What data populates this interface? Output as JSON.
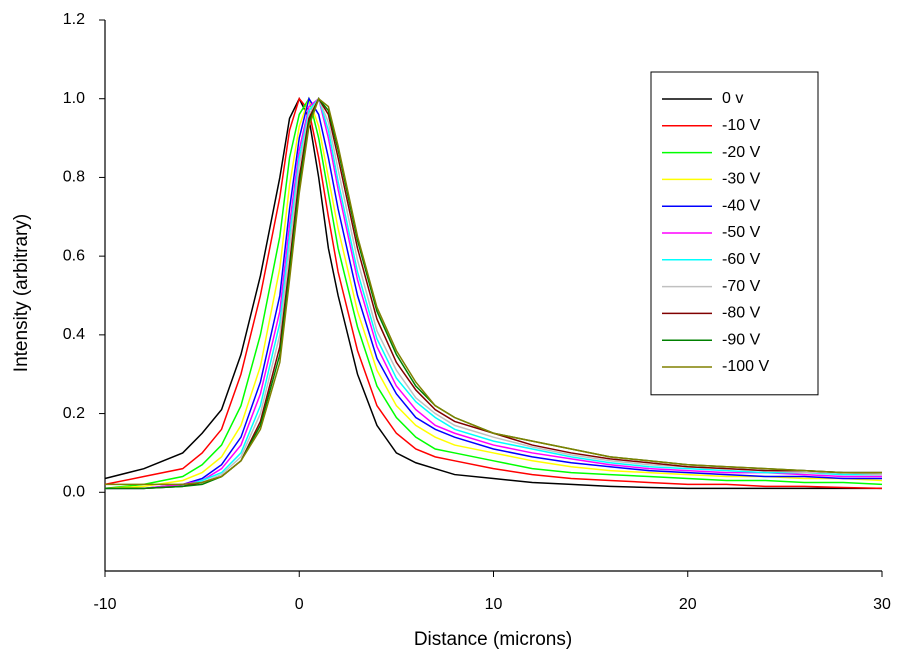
{
  "chart_data": {
    "type": "line",
    "xlabel": "Distance (microns)",
    "ylabel": "Intensity (arbitrary)",
    "x": [
      -10,
      -8,
      -6,
      -5,
      -4,
      -3,
      -2,
      -1,
      -0.5,
      0,
      0.5,
      1,
      1.5,
      2,
      3,
      4,
      5,
      6,
      7,
      8,
      10,
      12,
      14,
      16,
      18,
      20,
      22,
      24,
      26,
      28,
      30
    ],
    "xlim": [
      -10,
      30
    ],
    "xticks": [
      -10,
      0,
      10,
      20,
      30
    ],
    "ylim": [
      -0.2,
      1.2
    ],
    "yticks": [
      {
        "value": 0,
        "label": "0.0"
      },
      0.2,
      0.4,
      0.6,
      0.8,
      {
        "value": 1,
        "label": "1.0"
      },
      1.2
    ],
    "legend": "upper-right",
    "series": [
      {
        "name": "0 v",
        "color": "#000000",
        "values": [
          0.035,
          0.06,
          0.1,
          0.15,
          0.21,
          0.35,
          0.55,
          0.8,
          0.95,
          1.0,
          0.95,
          0.8,
          0.62,
          0.5,
          0.3,
          0.17,
          0.1,
          0.075,
          0.06,
          0.045,
          0.035,
          0.025,
          0.02,
          0.015,
          0.012,
          0.01,
          0.01,
          0.01,
          0.01,
          0.01,
          0.01
        ]
      },
      {
        "name": "-10 V",
        "color": "#ff0000",
        "values": [
          0.02,
          0.04,
          0.06,
          0.1,
          0.16,
          0.3,
          0.5,
          0.75,
          0.92,
          1.0,
          0.97,
          0.85,
          0.7,
          0.56,
          0.36,
          0.22,
          0.15,
          0.11,
          0.09,
          0.08,
          0.06,
          0.045,
          0.035,
          0.03,
          0.025,
          0.02,
          0.02,
          0.015,
          0.015,
          0.012,
          0.01
        ]
      },
      {
        "name": "-20 V",
        "color": "#00ff00",
        "values": [
          0.01,
          0.02,
          0.04,
          0.07,
          0.12,
          0.22,
          0.4,
          0.65,
          0.85,
          0.96,
          1.0,
          0.9,
          0.76,
          0.62,
          0.42,
          0.27,
          0.19,
          0.14,
          0.11,
          0.1,
          0.08,
          0.06,
          0.05,
          0.045,
          0.04,
          0.035,
          0.03,
          0.03,
          0.025,
          0.025,
          0.02
        ]
      },
      {
        "name": "-30 V",
        "color": "#ffff00",
        "values": [
          0.01,
          0.015,
          0.03,
          0.05,
          0.09,
          0.17,
          0.32,
          0.57,
          0.78,
          0.93,
          1.0,
          0.93,
          0.8,
          0.67,
          0.46,
          0.31,
          0.22,
          0.17,
          0.14,
          0.12,
          0.1,
          0.08,
          0.065,
          0.055,
          0.05,
          0.045,
          0.04,
          0.04,
          0.035,
          0.035,
          0.03
        ]
      },
      {
        "name": "-40 V",
        "color": "#0000ff",
        "values": [
          0.01,
          0.01,
          0.02,
          0.035,
          0.07,
          0.14,
          0.28,
          0.5,
          0.72,
          0.9,
          1.0,
          0.96,
          0.85,
          0.72,
          0.5,
          0.34,
          0.25,
          0.19,
          0.16,
          0.14,
          0.11,
          0.09,
          0.075,
          0.065,
          0.055,
          0.05,
          0.045,
          0.04,
          0.04,
          0.035,
          0.035
        ]
      },
      {
        "name": "-50 V",
        "color": "#ff00ff",
        "values": [
          0.01,
          0.01,
          0.02,
          0.03,
          0.06,
          0.12,
          0.25,
          0.46,
          0.68,
          0.87,
          0.98,
          1.0,
          0.9,
          0.77,
          0.54,
          0.37,
          0.27,
          0.21,
          0.17,
          0.15,
          0.12,
          0.1,
          0.085,
          0.07,
          0.06,
          0.055,
          0.05,
          0.05,
          0.045,
          0.04,
          0.04
        ]
      },
      {
        "name": "-60 V",
        "color": "#00ffff",
        "values": [
          0.01,
          0.01,
          0.015,
          0.03,
          0.05,
          0.1,
          0.22,
          0.43,
          0.65,
          0.85,
          0.97,
          1.0,
          0.92,
          0.79,
          0.56,
          0.39,
          0.29,
          0.23,
          0.19,
          0.16,
          0.13,
          0.11,
          0.09,
          0.075,
          0.065,
          0.06,
          0.055,
          0.05,
          0.05,
          0.045,
          0.045
        ]
      },
      {
        "name": "-70 V",
        "color": "#c0c0c0",
        "values": [
          0.01,
          0.01,
          0.015,
          0.025,
          0.045,
          0.09,
          0.2,
          0.4,
          0.62,
          0.83,
          0.96,
          1.0,
          0.94,
          0.82,
          0.59,
          0.41,
          0.31,
          0.24,
          0.2,
          0.17,
          0.14,
          0.115,
          0.095,
          0.08,
          0.07,
          0.065,
          0.06,
          0.055,
          0.05,
          0.05,
          0.045
        ]
      },
      {
        "name": "-80 V",
        "color": "#800000",
        "values": [
          0.01,
          0.01,
          0.015,
          0.025,
          0.04,
          0.08,
          0.18,
          0.37,
          0.58,
          0.8,
          0.95,
          1.0,
          0.96,
          0.85,
          0.62,
          0.44,
          0.33,
          0.26,
          0.21,
          0.18,
          0.15,
          0.12,
          0.1,
          0.085,
          0.075,
          0.065,
          0.06,
          0.055,
          0.055,
          0.05,
          0.05
        ]
      },
      {
        "name": "-90 V",
        "color": "#008000",
        "values": [
          0.01,
          0.01,
          0.015,
          0.02,
          0.04,
          0.08,
          0.17,
          0.35,
          0.56,
          0.78,
          0.94,
          1.0,
          0.97,
          0.87,
          0.64,
          0.46,
          0.35,
          0.27,
          0.22,
          0.19,
          0.15,
          0.13,
          0.11,
          0.09,
          0.08,
          0.07,
          0.065,
          0.06,
          0.055,
          0.05,
          0.05
        ]
      },
      {
        "name": "-100 V",
        "color": "#808000",
        "values": [
          0.02,
          0.02,
          0.02,
          0.025,
          0.04,
          0.08,
          0.16,
          0.33,
          0.54,
          0.76,
          0.93,
          1.0,
          0.98,
          0.88,
          0.65,
          0.47,
          0.36,
          0.28,
          0.22,
          0.19,
          0.15,
          0.13,
          0.11,
          0.09,
          0.08,
          0.07,
          0.065,
          0.06,
          0.055,
          0.05,
          0.05
        ]
      }
    ]
  }
}
